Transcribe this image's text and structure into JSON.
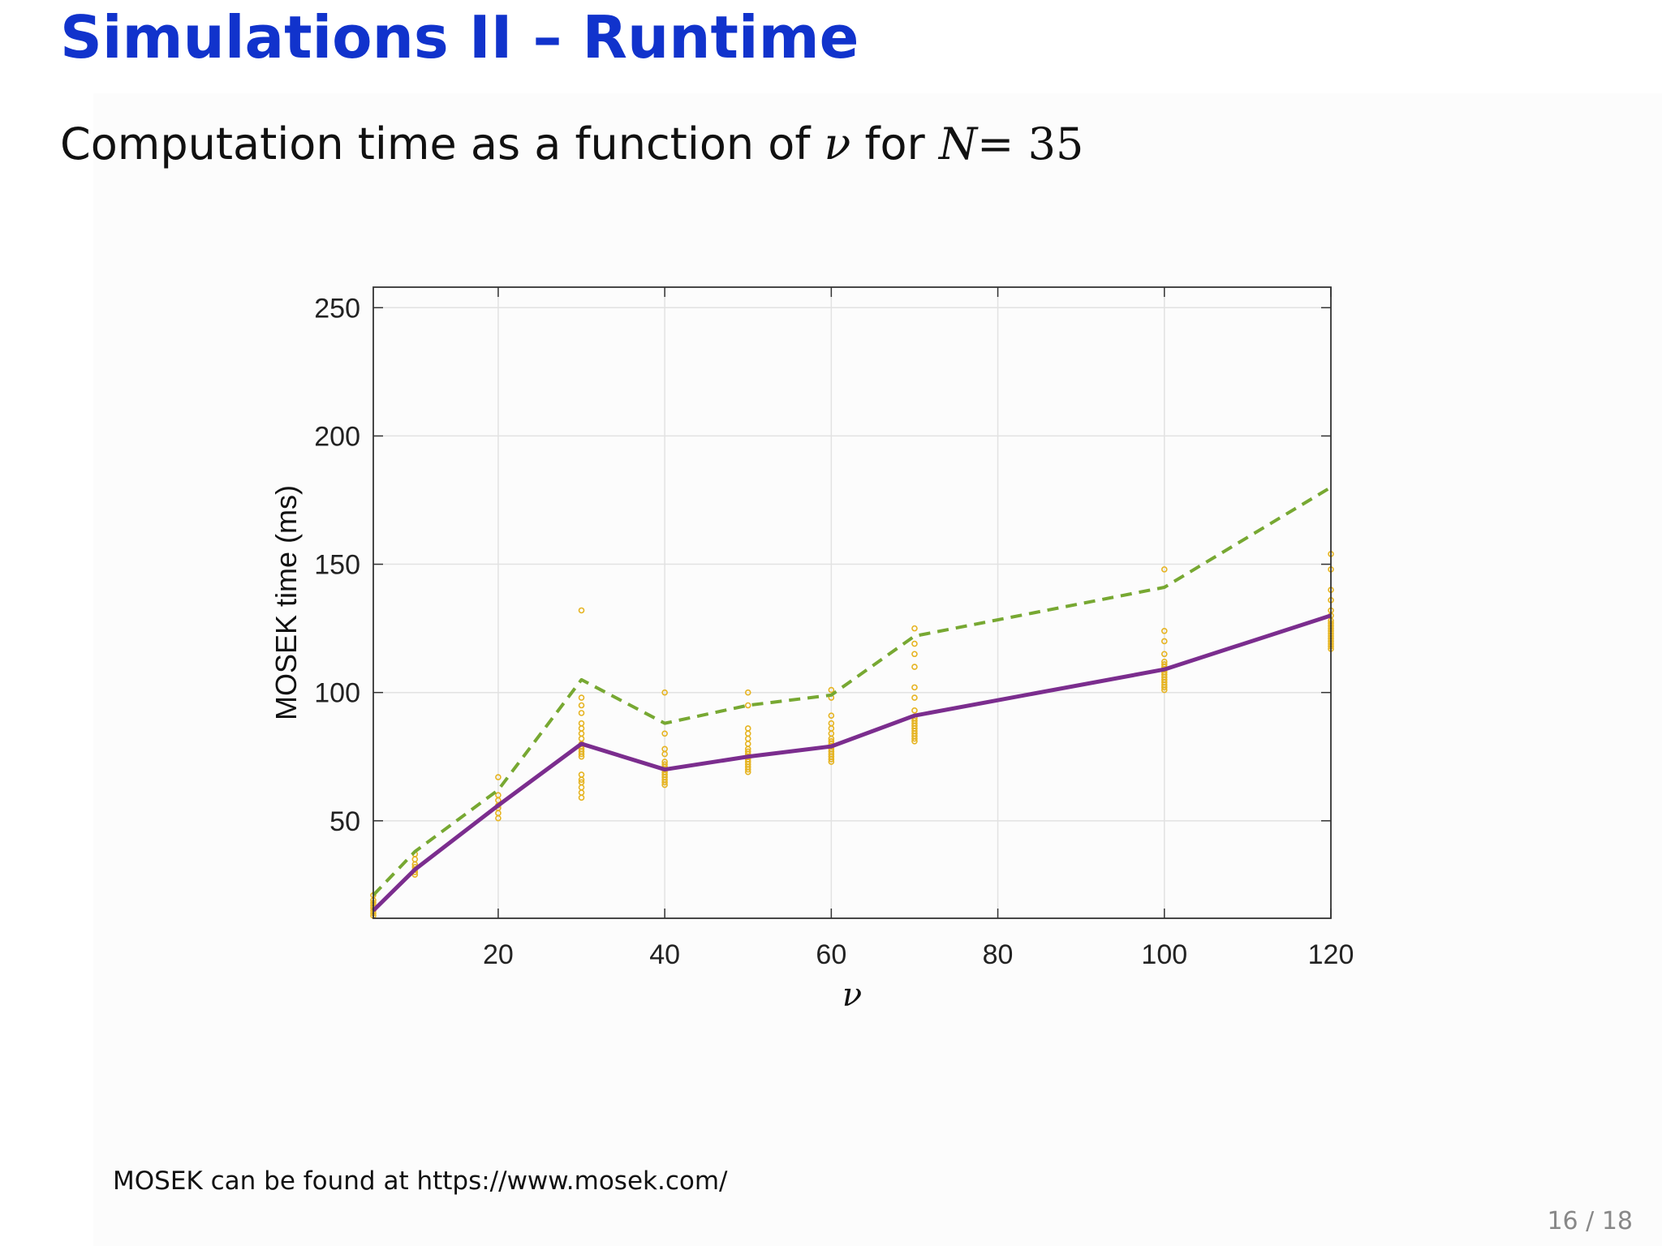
{
  "slide": {
    "title": "Simulations II – Runtime",
    "subtitle_prefix": "Computation time as a function of",
    "subtitle_var": "ν",
    "subtitle_mid": "for",
    "subtitle_N": "N",
    "subtitle_eq": "= 35",
    "footnote": "MOSEK can be found at https://www.mosek.com/",
    "page_number": "16 / 18"
  },
  "colors": {
    "title": "#1133cc",
    "mean_line": "#7b2d8e",
    "max_line": "#77a832",
    "points": "#e6b422"
  },
  "chart_data": {
    "type": "line",
    "xlabel": "ν",
    "ylabel": "MOSEK time (ms)",
    "xlim": [
      5,
      120
    ],
    "ylim": [
      12,
      258
    ],
    "xticks": [
      20,
      40,
      60,
      80,
      100,
      120
    ],
    "yticks": [
      50,
      100,
      150,
      200,
      250
    ],
    "grid": true,
    "series": [
      {
        "style": "solid",
        "x": [
          5,
          10,
          20,
          30,
          40,
          50,
          60,
          70,
          100,
          120
        ],
        "y": [
          15,
          31,
          56,
          80,
          70,
          75,
          79,
          91,
          109,
          130
        ]
      },
      {
        "style": "dashed",
        "x": [
          5,
          10,
          20,
          30,
          40,
          50,
          60,
          70,
          100,
          120
        ],
        "y": [
          21,
          38,
          62,
          105,
          88,
          95,
          99,
          122,
          141,
          180
        ]
      }
    ],
    "scatter": {
      "x": [
        5,
        5,
        5,
        5,
        5,
        5,
        5,
        5,
        10,
        10,
        10,
        10,
        10,
        10,
        10,
        20,
        20,
        20,
        20,
        20,
        20,
        20,
        30,
        30,
        30,
        30,
        30,
        30,
        30,
        30,
        30,
        30,
        30,
        30,
        30,
        30,
        30,
        30,
        30,
        30,
        30,
        30,
        40,
        40,
        40,
        40,
        40,
        40,
        40,
        40,
        40,
        40,
        40,
        40,
        40,
        40,
        50,
        50,
        50,
        50,
        50,
        50,
        50,
        50,
        50,
        50,
        50,
        50,
        50,
        50,
        50,
        50,
        60,
        60,
        60,
        60,
        60,
        60,
        60,
        60,
        60,
        60,
        60,
        60,
        60,
        60,
        60,
        60,
        70,
        70,
        70,
        70,
        70,
        70,
        70,
        70,
        70,
        70,
        70,
        70,
        70,
        70,
        70,
        70,
        70,
        100,
        100,
        100,
        100,
        100,
        100,
        100,
        100,
        100,
        100,
        100,
        100,
        100,
        100,
        100,
        100,
        120,
        120,
        120,
        120,
        120,
        120,
        120,
        120,
        120,
        120,
        120,
        120,
        120,
        120,
        120,
        120,
        120,
        120
      ],
      "y": [
        13,
        14,
        15,
        16,
        17,
        18,
        19,
        21,
        29,
        30,
        31,
        32,
        33,
        35,
        37,
        51,
        53,
        55,
        56,
        58,
        60,
        67,
        59,
        61,
        63,
        65,
        66,
        68,
        75,
        76,
        77,
        78,
        79,
        80,
        82,
        84,
        86,
        88,
        92,
        95,
        98,
        132,
        64,
        65,
        66,
        67,
        68,
        69,
        70,
        71,
        72,
        73,
        76,
        78,
        84,
        100,
        69,
        70,
        71,
        72,
        73,
        74,
        75,
        76,
        77,
        78,
        80,
        82,
        84,
        86,
        95,
        100,
        73,
        74,
        75,
        76,
        77,
        78,
        79,
        80,
        81,
        82,
        84,
        86,
        88,
        91,
        98,
        101,
        81,
        82,
        83,
        84,
        85,
        86,
        87,
        88,
        89,
        90,
        93,
        98,
        102,
        110,
        115,
        119,
        125,
        101,
        102,
        103,
        104,
        105,
        106,
        107,
        108,
        109,
        110,
        111,
        112,
        115,
        120,
        124,
        148,
        117,
        118,
        119,
        120,
        121,
        122,
        123,
        124,
        125,
        126,
        127,
        128,
        130,
        132,
        136,
        140,
        148,
        154
      ]
    }
  }
}
